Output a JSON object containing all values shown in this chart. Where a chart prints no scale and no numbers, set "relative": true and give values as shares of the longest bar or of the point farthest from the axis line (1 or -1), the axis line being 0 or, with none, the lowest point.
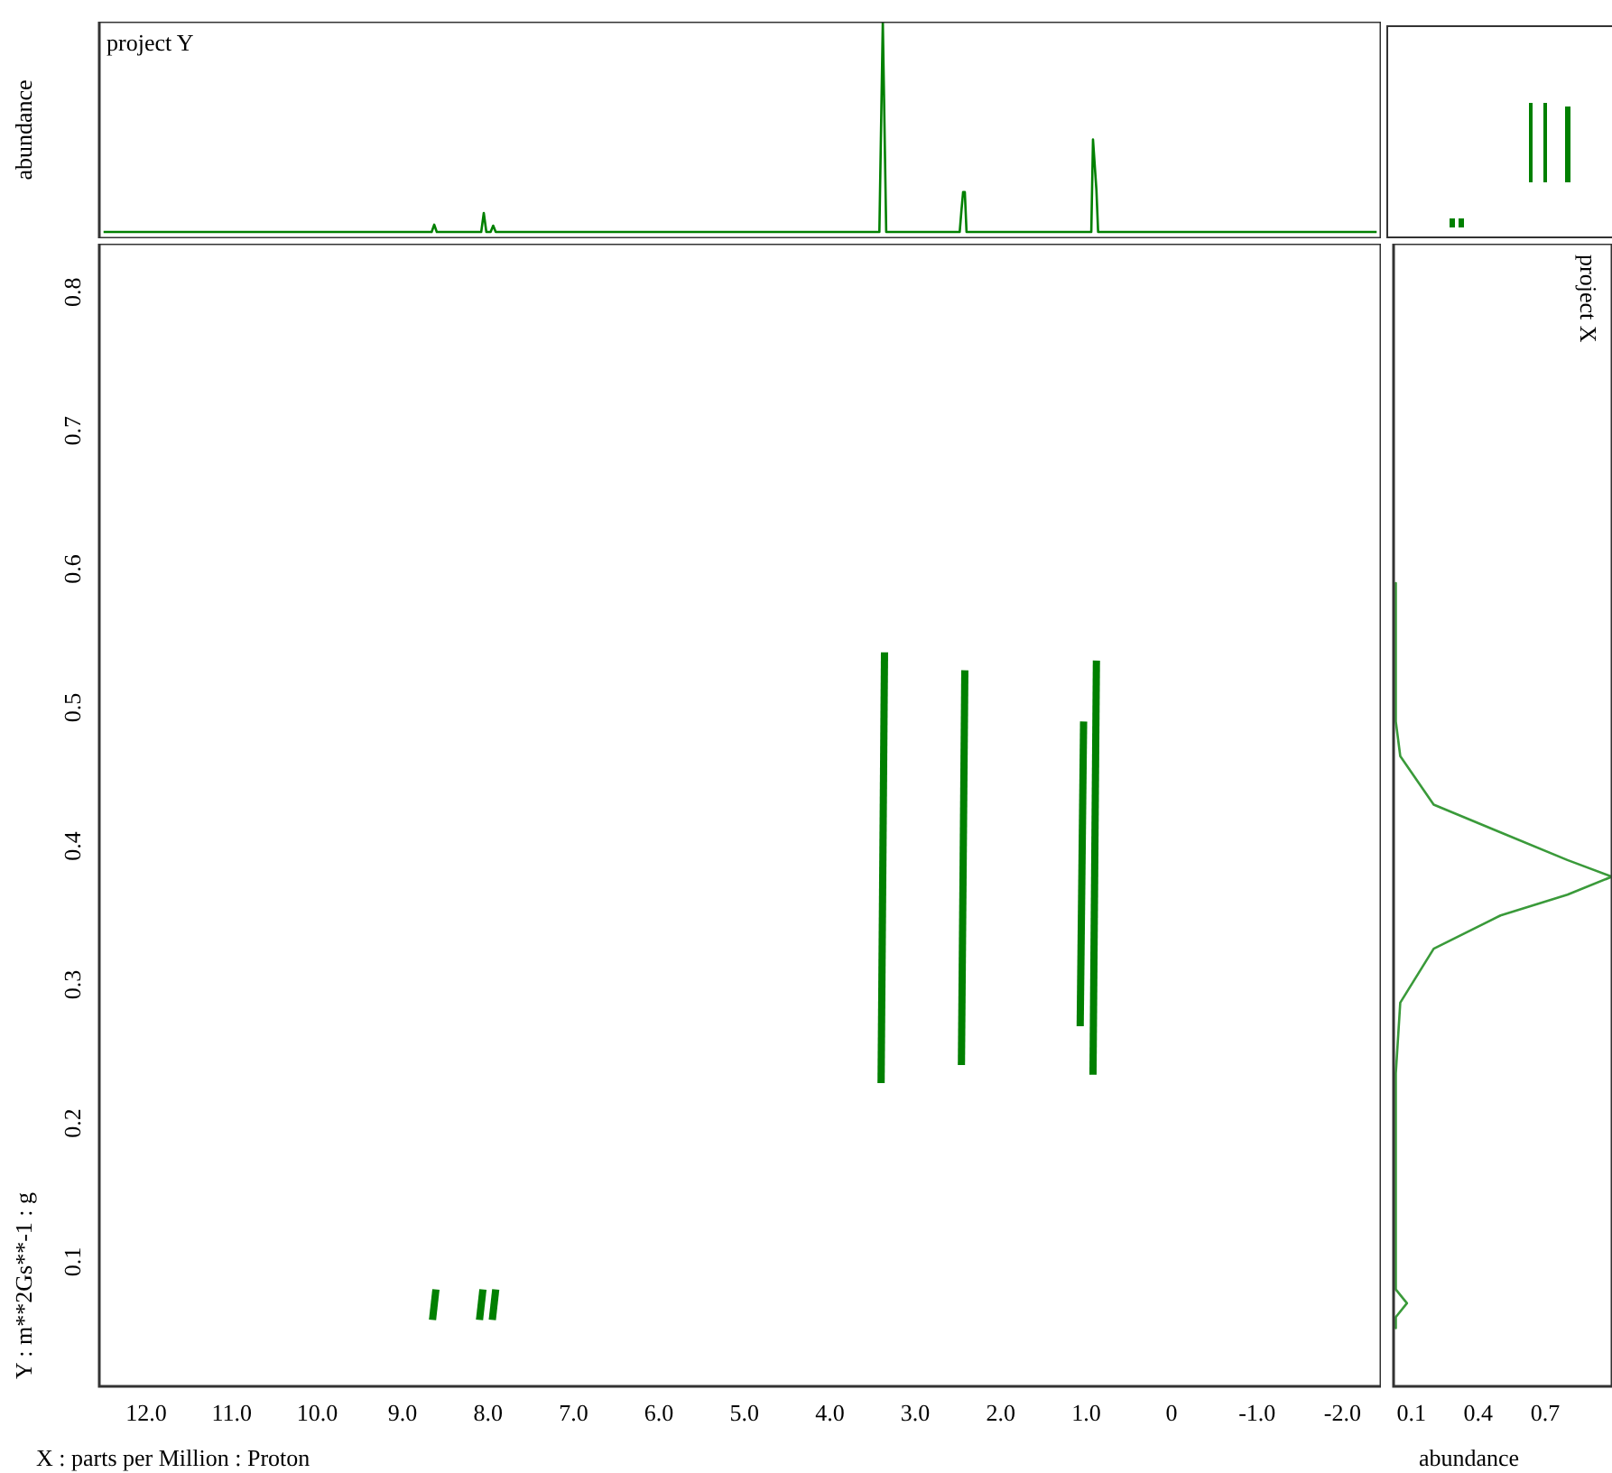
{
  "chart_data": [
    {
      "type": "line",
      "ylabel": "abundance",
      "annotations": [
        "project Y"
      ],
      "relative": true,
      "xlim": [
        12.55,
        -2.45
      ],
      "tick_labels": false,
      "grid": false,
      "legend": false,
      "marker": "none",
      "line_style": "solid",
      "series": [
        {
          "color": "#008000",
          "x": [
            12.5,
            8.66,
            8.63,
            8.6,
            8.08,
            8.05,
            8.02,
            7.97,
            7.94,
            7.91,
            3.42,
            3.38,
            3.34,
            2.48,
            2.46,
            2.44,
            2.42,
            2.4,
            0.94,
            0.92,
            0.88,
            0.86,
            -2.4
          ],
          "values": [
            0,
            0,
            0.035,
            0,
            0,
            0.09,
            0,
            0,
            0.03,
            0,
            0,
            1,
            0,
            0,
            0.1,
            0.19,
            0.19,
            0,
            0,
            0.44,
            0.2,
            0,
            0
          ]
        }
      ]
    },
    {
      "type": "line",
      "xlabel": "X : parts per Million : Proton",
      "ylabel": "Y : m**2Gs**-1 : g",
      "xlim": [
        12.55,
        -2.45
      ],
      "ylim": [
        0.01,
        0.835
      ],
      "xticks": [
        {
          "value": 12,
          "label": "12.0"
        },
        {
          "value": 11,
          "label": "11.0"
        },
        {
          "value": 10,
          "label": "10.0"
        },
        {
          "value": 9,
          "label": "9.0"
        },
        {
          "value": 8,
          "label": "8.0"
        },
        {
          "value": 7,
          "label": "7.0"
        },
        {
          "value": 6,
          "label": "6.0"
        },
        {
          "value": 5,
          "label": "5.0"
        },
        {
          "value": 4,
          "label": "4.0"
        },
        {
          "value": 3,
          "label": "3.0"
        },
        {
          "value": 2,
          "label": "2.0"
        },
        {
          "value": 1,
          "label": "1.0"
        },
        0,
        {
          "value": -1,
          "label": "-1.0"
        },
        {
          "value": -2,
          "label": "-2.0"
        }
      ],
      "yticks": [
        0.1,
        0.2,
        0.3,
        0.4,
        0.5,
        0.6,
        0.7,
        0.8
      ],
      "grid": false,
      "legend": false,
      "marker": "none",
      "line_style": "solid",
      "series": [
        {
          "color": "#008000",
          "x": [
            3.4,
            3.36
          ],
          "values": [
            0.229,
            0.54
          ]
        },
        {
          "color": "#008000",
          "x": [
            2.46,
            2.42
          ],
          "values": [
            0.242,
            0.527
          ]
        },
        {
          "color": "#008000",
          "x": [
            0.92,
            0.88
          ],
          "values": [
            0.235,
            0.534
          ]
        },
        {
          "color": "#008000",
          "x": [
            1.07,
            1.03
          ],
          "values": [
            0.27,
            0.49
          ]
        },
        {
          "color": "#008000",
          "x": [
            8.65,
            8.61
          ],
          "values": [
            0.058,
            0.08
          ]
        },
        {
          "color": "#008000",
          "x": [
            8.1,
            8.06
          ],
          "values": [
            0.058,
            0.08
          ]
        },
        {
          "color": "#008000",
          "x": [
            7.95,
            7.91
          ],
          "values": [
            0.058,
            0.08
          ]
        }
      ]
    },
    {
      "type": "line",
      "xlabel": "abundance",
      "annotations": [
        "project X"
      ],
      "xlim": [
        0.02,
        1.0
      ],
      "ylim": [
        0.01,
        0.835
      ],
      "xticks": [
        0.1,
        0.4,
        0.7
      ],
      "tick_labels": "x",
      "grid": false,
      "legend": false,
      "marker": "none",
      "line_style": "solid",
      "series": [
        {
          "color": "#3a9a3a",
          "x": [
            0.03,
            0.03,
            0.05,
            0.2,
            0.5,
            0.8,
            1.0,
            0.8,
            0.5,
            0.2,
            0.05,
            0.03,
            0.03,
            0.08,
            0.03,
            0.03
          ],
          "values": [
            0.59,
            0.49,
            0.465,
            0.43,
            0.41,
            0.39,
            0.378,
            0.365,
            0.35,
            0.326,
            0.287,
            0.236,
            0.08,
            0.07,
            0.06,
            0.052
          ]
        }
      ]
    }
  ]
}
